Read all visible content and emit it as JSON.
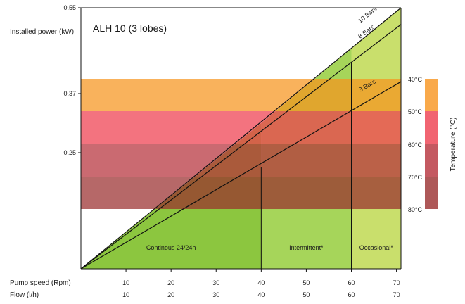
{
  "chart_data": {
    "type": "area",
    "title": "ALH 10 (3 lobes)",
    "ylabel": "Installed power (kW)",
    "y_ticks": [
      "0.25",
      "0.37",
      "0.55"
    ],
    "y_tick_values": [
      0.25,
      0.37,
      0.55
    ],
    "xlim": [
      0,
      71
    ],
    "x_ticks": [
      10,
      20,
      30,
      40,
      50,
      60,
      70
    ],
    "x_rows": [
      {
        "label": "Pump speed (Rpm)",
        "ticks": [
          "10",
          "20",
          "30",
          "40",
          "50",
          "60",
          "70"
        ]
      },
      {
        "label": "Flow (l/h)",
        "ticks": [
          "10",
          "20",
          "30",
          "40",
          "50",
          "60",
          "70"
        ]
      }
    ],
    "zones": [
      {
        "label": "Continous 24/24h",
        "from": 0,
        "to": 40,
        "color": "#8cc63f"
      },
      {
        "label": "Intermittent*",
        "from": 40,
        "to": 60,
        "color": "#a6d55a"
      },
      {
        "label": "Occasional*",
        "from": 60,
        "to": 71,
        "color": "#c9df6c"
      }
    ],
    "series": [
      {
        "name": "10 Bars",
        "x": [
          0,
          71
        ],
        "y": [
          0,
          0.55
        ]
      },
      {
        "name": "8 Bars",
        "x": [
          0,
          71
        ],
        "y": [
          0,
          0.515
        ]
      },
      {
        "name": "3 Bars",
        "x": [
          0,
          71
        ],
        "y": [
          0,
          0.395
        ]
      }
    ],
    "temperature": {
      "label": "Temperature (°C)",
      "ticks": [
        "40°C",
        "50°C",
        "60°C",
        "70°C",
        "80°C"
      ],
      "bands": [
        {
          "from": "40°C",
          "to": "50°C",
          "color": "#f7941d"
        },
        {
          "from": "50°C",
          "to": "60°C",
          "color": "#ee3d4d"
        },
        {
          "from": "60°C",
          "to": "70°C",
          "color": "#b5303a"
        },
        {
          "from": "70°C",
          "to": "80°C",
          "color": "#9a2e2e"
        }
      ]
    }
  }
}
